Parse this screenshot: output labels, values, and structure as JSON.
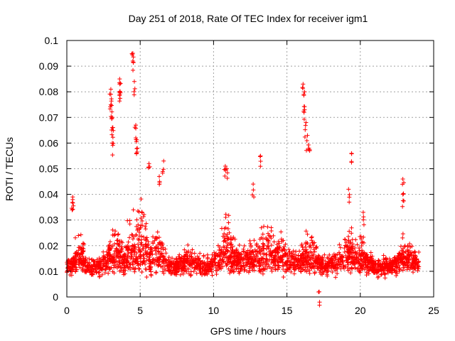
{
  "chart_data": {
    "type": "scatter",
    "title": "Day 251 of 2018, Rate Of TEC Index for receiver igm1",
    "xlabel": "GPS time / hours",
    "ylabel": "ROTI / TECUs",
    "xlim": [
      0,
      25
    ],
    "ylim": [
      0,
      0.1
    ],
    "xticks": [
      0,
      5,
      10,
      15,
      20,
      25
    ],
    "xtick_labels": [
      "0",
      "5",
      "10",
      "15",
      "20",
      "25"
    ],
    "yticks": [
      0,
      0.01,
      0.02,
      0.03,
      0.04,
      0.05,
      0.06,
      0.07,
      0.08,
      0.09,
      0.1
    ],
    "ytick_labels": [
      "0",
      "0.01",
      "0.02",
      "0.03",
      "0.04",
      "0.05",
      "0.06",
      "0.07",
      "0.08",
      "0.09",
      "0.1"
    ],
    "grid": true,
    "marker": "+",
    "marker_color": "#ff0000",
    "time_range_hours": [
      0,
      24
    ],
    "baseline_roti_range": [
      0.005,
      0.02
    ],
    "series": [
      {
        "name": "ROTI",
        "note": "dense cloud of thousands of points; listed values are representative peaks",
        "points": [
          [
            0.4,
            0.039
          ],
          [
            0.4,
            0.038
          ],
          [
            3.0,
            0.081
          ],
          [
            3.0,
            0.079
          ],
          [
            3.0,
            0.075
          ],
          [
            3.1,
            0.07
          ],
          [
            3.1,
            0.066
          ],
          [
            3.1,
            0.06
          ],
          [
            3.6,
            0.085
          ],
          [
            3.6,
            0.083
          ],
          [
            3.6,
            0.08
          ],
          [
            4.5,
            0.095
          ],
          [
            4.5,
            0.092
          ],
          [
            4.6,
            0.084
          ],
          [
            4.7,
            0.067
          ],
          [
            4.7,
            0.062
          ],
          [
            4.8,
            0.058
          ],
          [
            5.6,
            0.052
          ],
          [
            6.3,
            0.047
          ],
          [
            6.6,
            0.053
          ],
          [
            10.8,
            0.051
          ],
          [
            10.9,
            0.05
          ],
          [
            12.7,
            0.044
          ],
          [
            13.2,
            0.055
          ],
          [
            16.1,
            0.083
          ],
          [
            16.2,
            0.08
          ],
          [
            16.2,
            0.073
          ],
          [
            16.3,
            0.068
          ],
          [
            16.4,
            0.063
          ],
          [
            16.5,
            0.058
          ],
          [
            17.2,
            0.002
          ],
          [
            19.4,
            0.056
          ],
          [
            19.2,
            0.042
          ],
          [
            20.2,
            0.033
          ],
          [
            22.9,
            0.046
          ],
          [
            22.9,
            0.04
          ]
        ]
      }
    ]
  }
}
